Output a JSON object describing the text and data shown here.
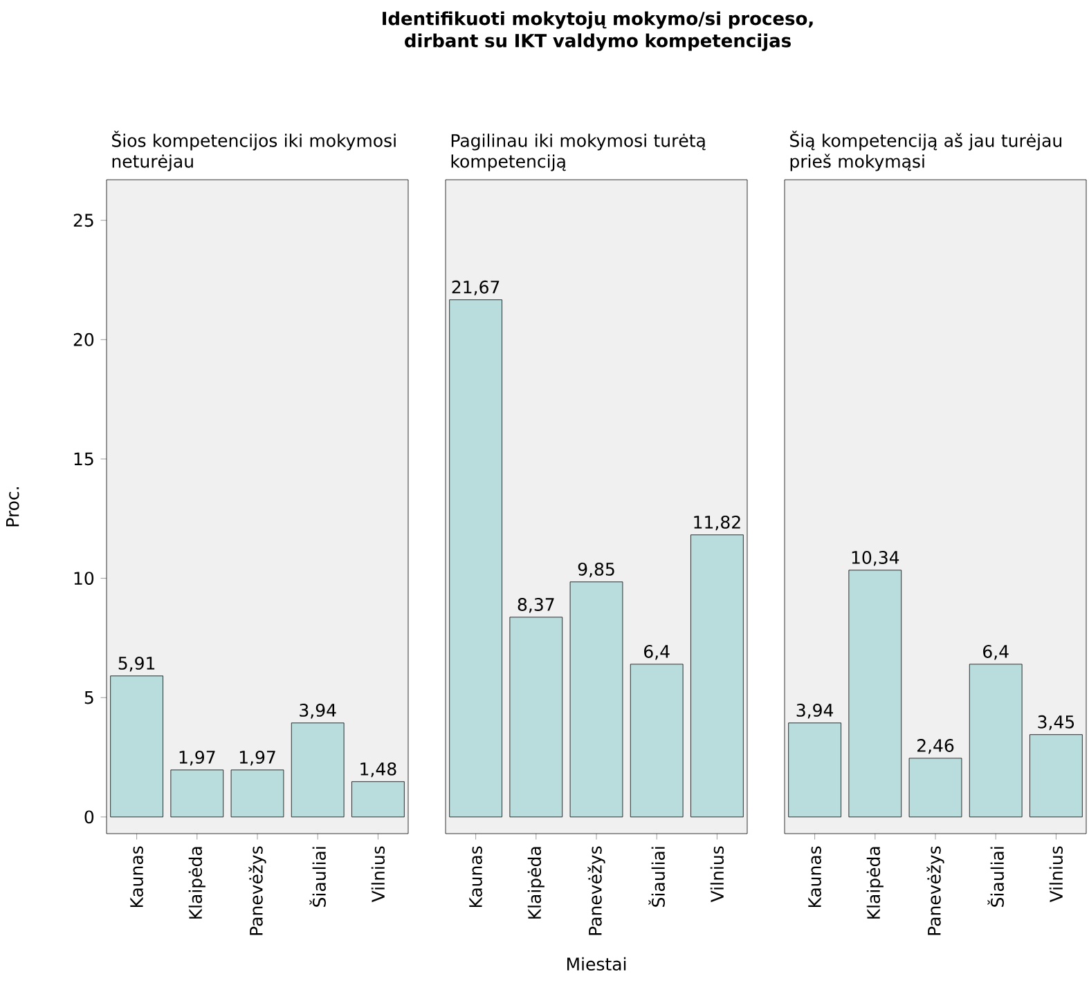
{
  "chart_data": [
    {
      "type": "other",
      "title": "Identifikuoti mokytojų mokymo/si proceso, dirbant su IKT valdymo kompetencijas"
    },
    {
      "type": "bar",
      "subtitle": "Šios kompetencijos iki mokymosi neturėjau",
      "ylabel": "Proc.",
      "categories": [
        "Kaunas",
        "Klaipėda",
        "Panevėžys",
        "Šiauliai",
        "Vilnius"
      ],
      "values": [
        5.91,
        1.97,
        1.97,
        3.94,
        1.48
      ],
      "value_labels": [
        "5,91",
        "1,97",
        "1,97",
        "3,94",
        "1,48"
      ],
      "color": "#b9dcdc",
      "ylim": [
        -0.7,
        26.7
      ],
      "yticks": [
        0,
        5,
        10,
        15,
        20,
        25
      ]
    },
    {
      "type": "bar",
      "subtitle": "Pagilinau iki mokymosi turėtą kompetenciją",
      "xlabel": "Miestai",
      "categories": [
        "Kaunas",
        "Klaipėda",
        "Panevėžys",
        "Šiauliai",
        "Vilnius"
      ],
      "values": [
        21.67,
        8.37,
        9.85,
        6.4,
        11.82
      ],
      "value_labels": [
        "21,67",
        "8,37",
        "9,85",
        "6,4",
        "11,82"
      ],
      "color": "#b9dcdc",
      "ylim": [
        -0.7,
        26.7
      ],
      "tick_labels": "x"
    },
    {
      "type": "bar",
      "subtitle": "Šią kompetenciją aš jau turėjau prieš mokymąsi",
      "categories": [
        "Kaunas",
        "Klaipėda",
        "Panevėžys",
        "Šiauliai",
        "Vilnius"
      ],
      "values": [
        3.94,
        10.34,
        2.46,
        6.4,
        3.45
      ],
      "value_labels": [
        "3,94",
        "10,34",
        "2,46",
        "6,4",
        "3,45"
      ],
      "color": "#b9dcdc",
      "ylim": [
        -0.7,
        26.7
      ],
      "tick_labels": "x"
    }
  ]
}
